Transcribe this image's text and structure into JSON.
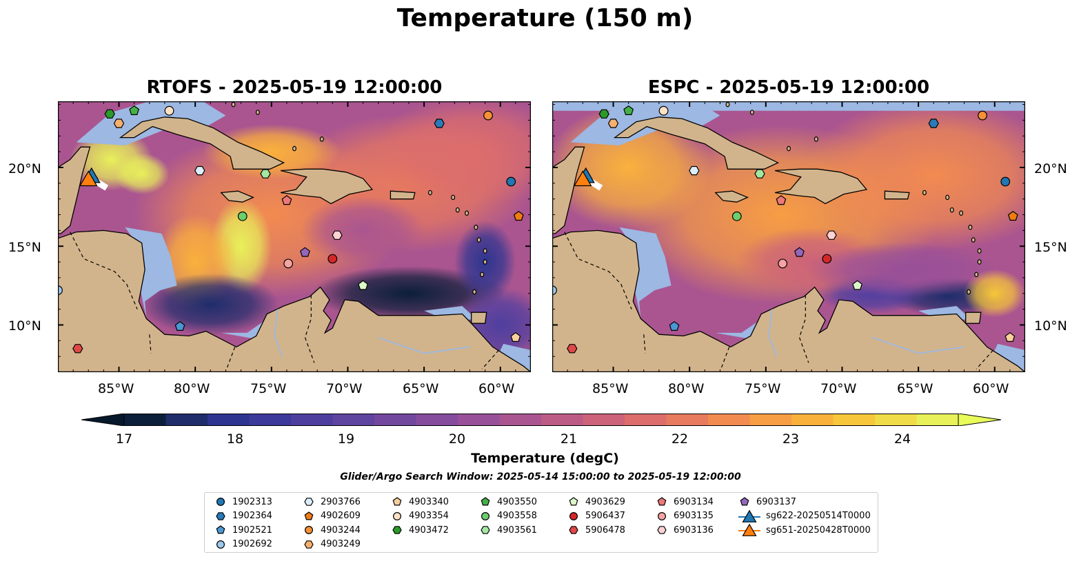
{
  "figure": {
    "suptitle": "Temperature (150 m)",
    "panels": [
      {
        "title": "RTOFS - 2025-05-19 12:00:00"
      },
      {
        "title": "ESPC - 2025-05-19 12:00:00"
      }
    ],
    "lon_ticks": [
      "85°W",
      "80°W",
      "75°W",
      "70°W",
      "65°W",
      "60°W"
    ],
    "lat_ticks": [
      "20°N",
      "15°N",
      "10°N"
    ],
    "colorbar": {
      "label": "Temperature (degC)",
      "ticks": [
        "17",
        "18",
        "19",
        "20",
        "21",
        "22",
        "23",
        "24"
      ],
      "range": [
        16.5,
        24.5
      ],
      "extend": "both",
      "colors": [
        "#0b1f3a",
        "#1f2d6b",
        "#2d3590",
        "#3c3a9b",
        "#4e3f9f",
        "#5f44a0",
        "#72489f",
        "#854c9d",
        "#985098",
        "#aa5590",
        "#bc5b86",
        "#cc637a",
        "#dc6d6c",
        "#e87a5e",
        "#f28b50",
        "#f79d44",
        "#fab13c",
        "#f7c63a",
        "#f0dc48",
        "#e8f05a"
      ],
      "under_color": "#07182c",
      "over_color": "#e8fb5a"
    },
    "map_colors": {
      "land": "#d2b48c",
      "shelf": "#9cb8e3",
      "deep_cold": "#0a2133"
    },
    "search_window": "Glider/Argo Search Window: 2025-05-14 15:00:00 to 2025-05-19 12:00:00"
  },
  "legend": {
    "items": [
      {
        "label": "1902313",
        "marker": "circle",
        "color": "#1f77b4"
      },
      {
        "label": "1902364",
        "marker": "hexagon",
        "color": "#2a7bb8"
      },
      {
        "label": "1902521",
        "marker": "pentagon",
        "color": "#4a98d3"
      },
      {
        "label": "1902692",
        "marker": "circle",
        "color": "#9ec9ec"
      },
      {
        "label": "2903766",
        "marker": "hexagon",
        "color": "#dbeefc"
      },
      {
        "label": "4902609",
        "marker": "pentagon",
        "color": "#f07c14"
      },
      {
        "label": "4903244",
        "marker": "circle",
        "color": "#f59038"
      },
      {
        "label": "4903249",
        "marker": "hexagon",
        "color": "#f7b06e"
      },
      {
        "label": "4903340",
        "marker": "pentagon",
        "color": "#fbcf9d"
      },
      {
        "label": "4903354",
        "marker": "circle",
        "color": "#fde2c4"
      },
      {
        "label": "4903472",
        "marker": "hexagon",
        "color": "#2a9a2a"
      },
      {
        "label": "4903550",
        "marker": "pentagon",
        "color": "#45b045"
      },
      {
        "label": "4903558",
        "marker": "circle",
        "color": "#6ccf6c"
      },
      {
        "label": "4903561",
        "marker": "hexagon",
        "color": "#a2e8a2"
      },
      {
        "label": "4903629",
        "marker": "pentagon",
        "color": "#dcfbc8"
      },
      {
        "label": "5906437",
        "marker": "circle",
        "color": "#d62728"
      },
      {
        "label": "5906478",
        "marker": "hexagon",
        "color": "#e04848"
      },
      {
        "label": "6903134",
        "marker": "pentagon",
        "color": "#ec7878"
      },
      {
        "label": "6903135",
        "marker": "circle",
        "color": "#f5a3a3"
      },
      {
        "label": "6903136",
        "marker": "hexagon",
        "color": "#fcd2d2"
      },
      {
        "label": "6903137",
        "marker": "pentagon",
        "color": "#9467bd"
      },
      {
        "label": "sg622-20250514T0000",
        "marker": "triangle-line",
        "color": "#1f77b4"
      },
      {
        "label": "sg651-20250428T0000",
        "marker": "triangle-line",
        "color": "#ff7f0e"
      }
    ]
  },
  "observations": [
    {
      "id": "1902313",
      "lon": -59.3,
      "lat": 19.1
    },
    {
      "id": "1902364",
      "lon": -64.0,
      "lat": 22.8
    },
    {
      "id": "1902521",
      "lon": -81.0,
      "lat": 9.9
    },
    {
      "id": "1902692",
      "lon": -89.0,
      "lat": 12.2
    },
    {
      "id": "2903766",
      "lon": -79.7,
      "lat": 19.8
    },
    {
      "id": "4902609",
      "lon": -58.8,
      "lat": 16.9
    },
    {
      "id": "4903244",
      "lon": -60.8,
      "lat": 23.3
    },
    {
      "id": "4903249",
      "lon": -85.0,
      "lat": 22.8
    },
    {
      "id": "4903340",
      "lon": -59.0,
      "lat": 9.2
    },
    {
      "id": "4903354",
      "lon": -81.7,
      "lat": 23.6
    },
    {
      "id": "4903472",
      "lon": -85.6,
      "lat": 23.4
    },
    {
      "id": "4903550",
      "lon": -84.0,
      "lat": 23.6
    },
    {
      "id": "4903558",
      "lon": -76.9,
      "lat": 16.9
    },
    {
      "id": "4903561",
      "lon": -75.4,
      "lat": 19.6
    },
    {
      "id": "4903629",
      "lon": -69.0,
      "lat": 12.5
    },
    {
      "id": "5906437",
      "lon": -71.0,
      "lat": 14.2
    },
    {
      "id": "5906478",
      "lon": -87.7,
      "lat": 8.5
    },
    {
      "id": "6903134",
      "lon": -74.0,
      "lat": 17.9
    },
    {
      "id": "6903135",
      "lon": -73.9,
      "lat": 13.9
    },
    {
      "id": "6903136",
      "lon": -70.7,
      "lat": 15.7
    },
    {
      "id": "6903137",
      "lon": -72.8,
      "lat": 14.6
    }
  ],
  "gliders": [
    {
      "id": "sg622-20250514T0000",
      "lon": -86.8,
      "lat": 19.5
    },
    {
      "id": "sg651-20250428T0000",
      "lon": -87.0,
      "lat": 19.3
    }
  ],
  "map_extent": {
    "lon": [
      -89,
      -58
    ],
    "lat": [
      7,
      24.2
    ]
  }
}
